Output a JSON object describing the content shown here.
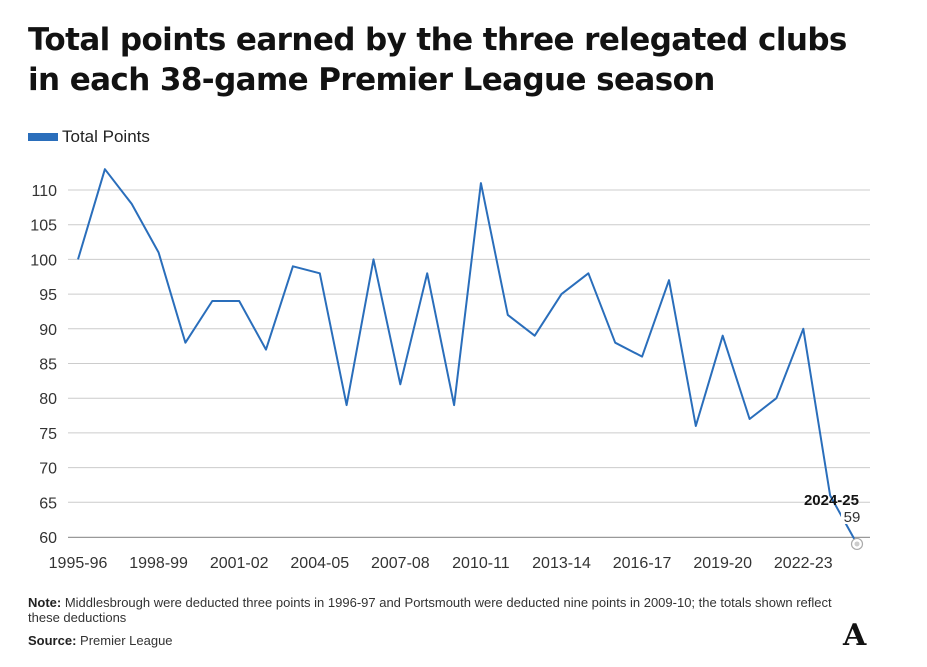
{
  "title": "Total points earned by the three relegated clubs in each 38-game Premier League season",
  "note_label": "Note:",
  "note_text": "Middlesbrough were deducted three points in 1996-97 and Portsmouth were deducted nine points in 2009-10; the totals shown reflect these deductions",
  "source_label": "Source:",
  "source_text": "Premier League",
  "logo_text": "A",
  "colors": {
    "series": "#2a6ebb",
    "grid": "#cccccc",
    "axis": "#999999"
  },
  "chart_data": {
    "type": "line",
    "title": "Total points earned by the three relegated clubs in each 38-game Premier League season",
    "xlabel": "",
    "ylabel": "",
    "legend": "top-left",
    "grid": true,
    "ylim": [
      60,
      110
    ],
    "yticks": [
      60,
      65,
      70,
      75,
      80,
      85,
      90,
      95,
      100,
      105,
      110
    ],
    "xtick_labels": [
      "1995-96",
      "1998-99",
      "2001-02",
      "2004-05",
      "2007-08",
      "2010-11",
      "2013-14",
      "2016-17",
      "2019-20",
      "2022-23"
    ],
    "categories": [
      "1995-96",
      "1996-97",
      "1997-98",
      "1998-99",
      "1999-00",
      "2000-01",
      "2001-02",
      "2002-03",
      "2003-04",
      "2004-05",
      "2005-06",
      "2006-07",
      "2007-08",
      "2008-09",
      "2009-10",
      "2010-11",
      "2011-12",
      "2012-13",
      "2013-14",
      "2014-15",
      "2015-16",
      "2016-17",
      "2017-18",
      "2018-19",
      "2019-20",
      "2020-21",
      "2021-22",
      "2022-23",
      "2023-24",
      "2024-25"
    ],
    "series": [
      {
        "name": "Total Points",
        "values": [
          100,
          113,
          108,
          101,
          88,
          94,
          94,
          87,
          99,
          98,
          79,
          100,
          82,
          98,
          79,
          111,
          92,
          89,
          95,
          98,
          88,
          86,
          97,
          76,
          89,
          77,
          80,
          90,
          66,
          59
        ]
      }
    ],
    "annotation": {
      "label": "2024-25",
      "value": "59"
    }
  }
}
